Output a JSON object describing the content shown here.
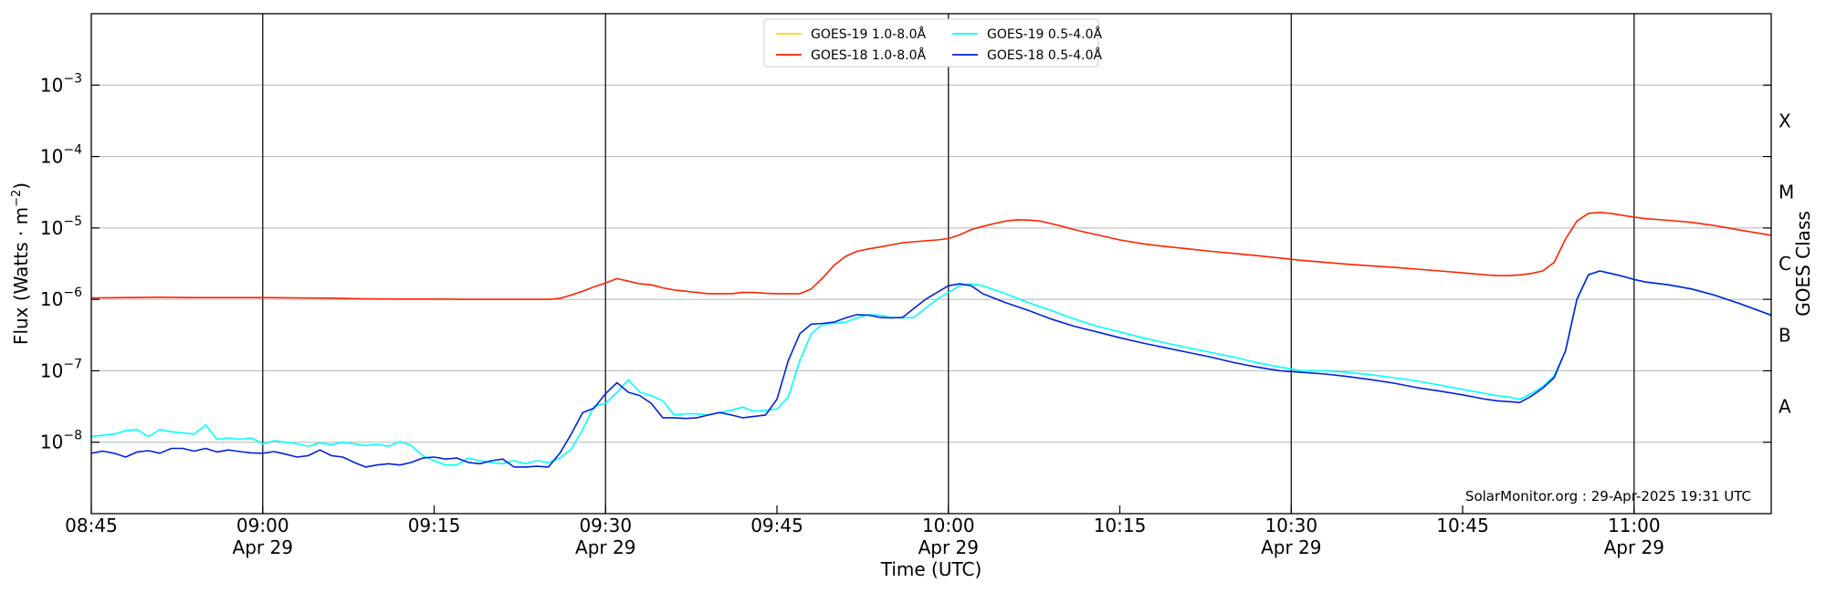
{
  "chart_data": {
    "type": "line",
    "xlabel": "Time (UTC)",
    "ylabel": "Flux (Watts · m",
    "ylabel_sup": "−2",
    "ylabel_close": ")",
    "y2label": "GOES Class",
    "y_scale": "log",
    "ylim": [
      1e-09,
      0.01
    ],
    "xlim_minutes": [
      0,
      147
    ],
    "x_ticks": [
      {
        "t": 0,
        "label": "08:45",
        "sub": ""
      },
      {
        "t": 15,
        "label": "09:00",
        "sub": "Apr 29"
      },
      {
        "t": 30,
        "label": "09:15",
        "sub": ""
      },
      {
        "t": 45,
        "label": "09:30",
        "sub": "Apr 29"
      },
      {
        "t": 60,
        "label": "09:45",
        "sub": ""
      },
      {
        "t": 75,
        "label": "10:00",
        "sub": "Apr 29"
      },
      {
        "t": 90,
        "label": "10:15",
        "sub": ""
      },
      {
        "t": 105,
        "label": "10:30",
        "sub": "Apr 29"
      },
      {
        "t": 120,
        "label": "10:45",
        "sub": ""
      },
      {
        "t": 135,
        "label": "11:00",
        "sub": "Apr 29"
      }
    ],
    "vertical_lines_minutes": [
      15,
      45,
      75,
      105,
      135
    ],
    "y_ticks": [
      {
        "exp": -8,
        "label": "10",
        "sup": "−8"
      },
      {
        "exp": -7,
        "label": "10",
        "sup": "−7"
      },
      {
        "exp": -6,
        "label": "10",
        "sup": "−6"
      },
      {
        "exp": -5,
        "label": "10",
        "sup": "−5"
      },
      {
        "exp": -4,
        "label": "10",
        "sup": "−4"
      },
      {
        "exp": -3,
        "label": "10",
        "sup": "−3"
      }
    ],
    "goes_classes": [
      {
        "label": "A",
        "exp": -7.5
      },
      {
        "label": "B",
        "exp": -6.5
      },
      {
        "label": "C",
        "exp": -5.5
      },
      {
        "label": "M",
        "exp": -4.5
      },
      {
        "label": "X",
        "exp": -3.5
      }
    ],
    "grid": "horizontal",
    "legend_position": "top-center",
    "legend": [
      {
        "name": "GOES-19 1.0-8.0Å",
        "color": "#ffd700"
      },
      {
        "name": "GOES-19 0.5-4.0Å",
        "color": "#00ffff"
      },
      {
        "name": "GOES-18 1.0-8.0Å",
        "color": "#ff2200"
      },
      {
        "name": "GOES-18 0.5-4.0Å",
        "color": "#0022dd"
      }
    ],
    "credit": "SolarMonitor.org : 29-Apr-2025 19:31 UTC",
    "series": [
      {
        "name": "GOES-18 1.0-8.0Å",
        "color": "#ff2200",
        "x": [
          0,
          3,
          6,
          9,
          12,
          15,
          18,
          21,
          24,
          27,
          30,
          33,
          36,
          39,
          40,
          41,
          42,
          43,
          44,
          45,
          46,
          47,
          48,
          49,
          50,
          51,
          52,
          53,
          54,
          55,
          56,
          57,
          58,
          59,
          60,
          61,
          62,
          63,
          64,
          65,
          66,
          67,
          68,
          69,
          70,
          71,
          72,
          73,
          74,
          75,
          76,
          77,
          78,
          79,
          80,
          81,
          82,
          83,
          84,
          85,
          86,
          87,
          88,
          89,
          90,
          92,
          94,
          96,
          98,
          100,
          102,
          104,
          106,
          108,
          110,
          112,
          114,
          116,
          118,
          120,
          122,
          123,
          124,
          125,
          126,
          127,
          128,
          129,
          130,
          131,
          132,
          133,
          134,
          135,
          136,
          138,
          140,
          142,
          144,
          147
        ],
        "y": [
          1.05e-06,
          1.06e-06,
          1.07e-06,
          1.06e-06,
          1.06e-06,
          1.06e-06,
          1.05e-06,
          1.04e-06,
          1.02e-06,
          1.01e-06,
          1.01e-06,
          1e-06,
          1e-06,
          1e-06,
          1e-06,
          1.03e-06,
          1.15e-06,
          1.3e-06,
          1.5e-06,
          1.7e-06,
          1.95e-06,
          1.8e-06,
          1.65e-06,
          1.6e-06,
          1.45e-06,
          1.35e-06,
          1.3e-06,
          1.25e-06,
          1.2e-06,
          1.2e-06,
          1.2e-06,
          1.25e-06,
          1.25e-06,
          1.22e-06,
          1.2e-06,
          1.2e-06,
          1.2e-06,
          1.4e-06,
          2e-06,
          3e-06,
          4e-06,
          4.7e-06,
          5.1e-06,
          5.4e-06,
          5.8e-06,
          6.2e-06,
          6.4e-06,
          6.6e-06,
          6.8e-06,
          7.1e-06,
          8e-06,
          9.5e-06,
          1.05e-05,
          1.15e-05,
          1.25e-05,
          1.3e-05,
          1.29e-05,
          1.25e-05,
          1.15e-05,
          1.05e-05,
          9.5e-06,
          8.7e-06,
          8e-06,
          7.4e-06,
          6.8e-06,
          6e-06,
          5.5e-06,
          5.1e-06,
          4.7e-06,
          4.4e-06,
          4.1e-06,
          3.8e-06,
          3.5e-06,
          3.3e-06,
          3.1e-06,
          2.95e-06,
          2.8e-06,
          2.65e-06,
          2.5e-06,
          2.35e-06,
          2.2e-06,
          2.15e-06,
          2.15e-06,
          2.2e-06,
          2.3e-06,
          2.5e-06,
          3.3e-06,
          7e-06,
          1.25e-05,
          1.6e-05,
          1.65e-05,
          1.6e-05,
          1.5e-05,
          1.42e-05,
          1.35e-05,
          1.28e-05,
          1.2e-05,
          1.08e-05,
          9.5e-06,
          7.9e-06
        ]
      },
      {
        "name": "GOES-19 0.5-4.0Å",
        "color": "#00ffff",
        "x": [
          0,
          1,
          2,
          3,
          4,
          5,
          6,
          7,
          8,
          9,
          10,
          11,
          12,
          13,
          14,
          15,
          16,
          17,
          18,
          19,
          20,
          21,
          22,
          23,
          24,
          25,
          26,
          27,
          28,
          29,
          30,
          31,
          32,
          33,
          34,
          35,
          36,
          37,
          38,
          39,
          40,
          41,
          42,
          43,
          44,
          45,
          46,
          47,
          48,
          49,
          50,
          51,
          52,
          53,
          54,
          55,
          56,
          57,
          58,
          59,
          60,
          61,
          62,
          63,
          64,
          65,
          66,
          67,
          68,
          69,
          70,
          71,
          72,
          73,
          74,
          75,
          76,
          77,
          78,
          80,
          82,
          84,
          86,
          88,
          90,
          92,
          94,
          96,
          98,
          100,
          102,
          104,
          106,
          108,
          110,
          112,
          114,
          116,
          118,
          120,
          122,
          123,
          124,
          125,
          126,
          127,
          128,
          129,
          130,
          131,
          132,
          133,
          134,
          135,
          136,
          138,
          140,
          142,
          144,
          147
        ],
        "y": [
          1.2e-08,
          1.25e-08,
          1.3e-08,
          1.45e-08,
          1.5e-08,
          1.2e-08,
          1.5e-08,
          1.4e-08,
          1.35e-08,
          1.3e-08,
          1.75e-08,
          1.1e-08,
          1.15e-08,
          1.1e-08,
          1.15e-08,
          9.5e-09,
          1.05e-08,
          1e-08,
          9.5e-09,
          8.8e-09,
          9.8e-09,
          9.2e-09,
          1e-08,
          9.5e-09,
          9e-09,
          9.3e-09,
          8.8e-09,
          1.02e-08,
          9e-09,
          6.5e-09,
          5.5e-09,
          4.8e-09,
          4.8e-09,
          6e-09,
          5.5e-09,
          5.2e-09,
          5e-09,
          5.5e-09,
          5e-09,
          5.5e-09,
          5.2e-09,
          6e-09,
          8e-09,
          1.5e-08,
          3.2e-08,
          3.5e-08,
          5e-08,
          7.5e-08,
          5e-08,
          4.5e-08,
          3.8e-08,
          2.4e-08,
          2.5e-08,
          2.5e-08,
          2.4e-08,
          2.6e-08,
          2.8e-08,
          3.1e-08,
          2.7e-08,
          2.8e-08,
          2.9e-08,
          4.3e-08,
          1.4e-07,
          3.3e-07,
          4.5e-07,
          4.6e-07,
          4.8e-07,
          5.5e-07,
          6.1e-07,
          6e-07,
          5.6e-07,
          5.5e-07,
          5.6e-07,
          7.5e-07,
          1e-06,
          1.25e-06,
          1.55e-06,
          1.65e-06,
          1.55e-06,
          1.2e-06,
          9e-07,
          7e-07,
          5.3e-07,
          4.2e-07,
          3.5e-07,
          2.9e-07,
          2.45e-07,
          2.1e-07,
          1.8e-07,
          1.55e-07,
          1.3e-07,
          1.13e-07,
          1e-07,
          1e-07,
          9.5e-08,
          8.8e-08,
          8e-08,
          7.2e-08,
          6.3e-08,
          5.5e-08,
          4.8e-08,
          4.5e-08,
          4.3e-08,
          4e-08,
          4.8e-08,
          6e-08,
          8.5e-08,
          1.9e-07,
          1e-06,
          2.2e-06,
          2.5e-06,
          2.3e-06,
          2.1e-06,
          1.9e-06,
          1.75e-06,
          1.6e-06,
          1.4e-06,
          1.15e-06,
          9e-07,
          6e-07
        ]
      },
      {
        "name": "GOES-18 0.5-4.0Å",
        "color": "#0022dd",
        "x": [
          0,
          1,
          2,
          3,
          4,
          5,
          6,
          7,
          8,
          9,
          10,
          11,
          12,
          13,
          14,
          15,
          16,
          17,
          18,
          19,
          20,
          21,
          22,
          23,
          24,
          25,
          26,
          27,
          28,
          29,
          30,
          31,
          32,
          33,
          34,
          35,
          36,
          37,
          38,
          39,
          40,
          41,
          42,
          43,
          44,
          45,
          46,
          47,
          48,
          49,
          50,
          51,
          52,
          53,
          54,
          55,
          56,
          57,
          58,
          59,
          60,
          61,
          62,
          63,
          64,
          65,
          66,
          67,
          68,
          69,
          70,
          71,
          72,
          73,
          74,
          75,
          76,
          77,
          78,
          80,
          82,
          84,
          86,
          88,
          90,
          92,
          94,
          96,
          98,
          100,
          102,
          104,
          106,
          108,
          110,
          112,
          114,
          116,
          118,
          120,
          122,
          123,
          124,
          125,
          126,
          127,
          128,
          129,
          130,
          131,
          132,
          133,
          134,
          135,
          136,
          138,
          140,
          142,
          144,
          147
        ],
        "y": [
          7e-09,
          7.5e-09,
          7e-09,
          6.2e-09,
          7.3e-09,
          7.6e-09,
          7e-09,
          8.2e-09,
          8.2e-09,
          7.5e-09,
          8.2e-09,
          7.3e-09,
          7.8e-09,
          7.4e-09,
          7.1e-09,
          7e-09,
          7.4e-09,
          6.8e-09,
          6.2e-09,
          6.5e-09,
          7.8e-09,
          6.5e-09,
          6.2e-09,
          5.2e-09,
          4.5e-09,
          4.8e-09,
          5e-09,
          4.8e-09,
          5.2e-09,
          6e-09,
          6.2e-09,
          5.8e-09,
          6e-09,
          5.2e-09,
          5e-09,
          5.5e-09,
          5.8e-09,
          4.5e-09,
          4.5e-09,
          4.6e-09,
          4.5e-09,
          7e-09,
          1.3e-08,
          2.6e-08,
          3e-08,
          4.8e-08,
          6.8e-08,
          5e-08,
          4.5e-08,
          3.5e-08,
          2.2e-08,
          2.2e-08,
          2.15e-08,
          2.2e-08,
          2.4e-08,
          2.6e-08,
          2.4e-08,
          2.2e-08,
          2.3e-08,
          2.4e-08,
          4e-08,
          1.4e-07,
          3.3e-07,
          4.5e-07,
          4.6e-07,
          4.8e-07,
          5.5e-07,
          6.1e-07,
          6e-07,
          5.6e-07,
          5.5e-07,
          5.6e-07,
          7.5e-07,
          1e-06,
          1.25e-06,
          1.55e-06,
          1.65e-06,
          1.55e-06,
          1.2e-06,
          9e-07,
          7e-07,
          5.3e-07,
          4.2e-07,
          3.5e-07,
          2.9e-07,
          2.45e-07,
          2.1e-07,
          1.8e-07,
          1.55e-07,
          1.3e-07,
          1.13e-07,
          1e-07,
          9.5e-08,
          9e-08,
          8.3e-08,
          7.5e-08,
          6.7e-08,
          5.8e-08,
          5.2e-08,
          4.6e-08,
          4e-08,
          3.8e-08,
          3.7e-08,
          3.6e-08,
          4.4e-08,
          5.7e-08,
          8e-08,
          1.9e-07,
          1e-06,
          2.2e-06,
          2.5e-06,
          2.3e-06,
          2.1e-06,
          1.9e-06,
          1.75e-06,
          1.6e-06,
          1.4e-06,
          1.15e-06,
          9e-07,
          6e-07
        ]
      }
    ]
  }
}
